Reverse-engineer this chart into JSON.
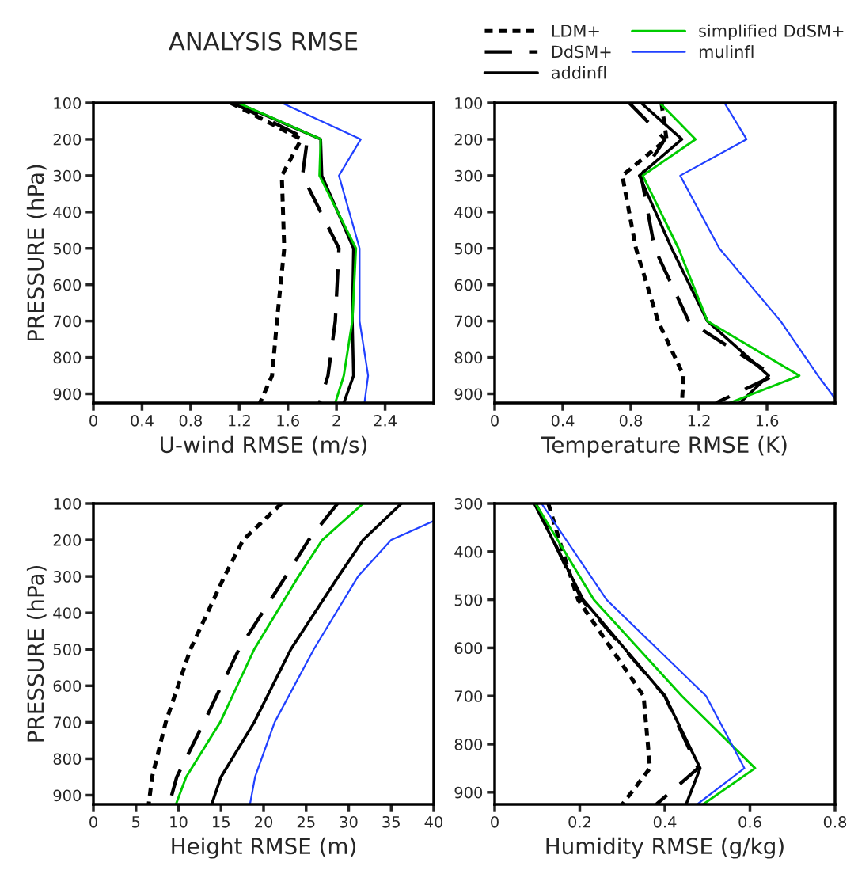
{
  "chart_data": [
    {
      "type": "line",
      "title": "ANALYSIS RMSE",
      "xlabel": "U-wind RMSE (m/s)",
      "ylabel": "PRESSURE (hPa)",
      "xlim": [
        0,
        2.8
      ],
      "xticks": [
        0,
        0.4,
        0.8,
        1.2,
        1.6,
        2,
        2.4
      ],
      "ylim": [
        925,
        100
      ],
      "yticks": [
        100,
        200,
        300,
        400,
        500,
        600,
        700,
        800,
        900
      ],
      "grid": false,
      "legend": false,
      "series": [
        {
          "color": "#000000",
          "line_style": "dotted",
          "x": [
            1.13,
            1.71,
            1.55,
            1.57,
            1.51,
            1.47,
            1.37
          ],
          "values": [
            100,
            200,
            300,
            500,
            700,
            850,
            925
          ]
        },
        {
          "color": "#000000",
          "line_style": "dashed",
          "x": [
            1.15,
            1.76,
            1.72,
            2.02,
            1.99,
            1.93,
            1.86
          ],
          "values": [
            100,
            200,
            300,
            500,
            700,
            850,
            925
          ]
        },
        {
          "color": "#000000",
          "line_style": "solid",
          "x": [
            1.18,
            1.87,
            1.88,
            2.14,
            2.13,
            2.14,
            2.06
          ],
          "values": [
            100,
            200,
            300,
            500,
            700,
            850,
            925
          ]
        },
        {
          "color": "#00cc00",
          "line_style": "solid",
          "x": [
            1.19,
            1.87,
            1.86,
            2.16,
            2.13,
            2.06,
            1.99
          ],
          "values": [
            100,
            200,
            300,
            500,
            700,
            850,
            925
          ]
        },
        {
          "color": "#2040ff",
          "line_style": "solid",
          "x": [
            1.55,
            2.2,
            2.02,
            2.19,
            2.19,
            2.26,
            2.23
          ],
          "values": [
            100,
            200,
            300,
            500,
            700,
            850,
            925
          ]
        }
      ]
    },
    {
      "type": "line",
      "xlabel": "Temperature RMSE (K)",
      "xlim": [
        0,
        2.0
      ],
      "xticks": [
        0,
        0.4,
        0.8,
        1.2,
        1.6
      ],
      "ylim": [
        925,
        100
      ],
      "yticks": [
        100,
        200,
        300,
        400,
        500,
        600,
        700,
        800,
        900
      ],
      "grid": false,
      "legend": "top",
      "series": [
        {
          "name": "LDM+",
          "color": "#000000",
          "line_style": "dotted",
          "x": [
            0.98,
            1.01,
            0.75,
            0.83,
            0.96,
            1.11,
            1.1
          ],
          "values": [
            100,
            200,
            300,
            500,
            700,
            850,
            925
          ]
        },
        {
          "name": "DdSM+",
          "color": "#000000",
          "line_style": "dashed",
          "x": [
            0.79,
            1.0,
            0.86,
            0.94,
            1.14,
            1.64,
            1.3
          ],
          "values": [
            100,
            200,
            300,
            500,
            700,
            850,
            925
          ]
        },
        {
          "name": "addinfl",
          "color": "#000000",
          "line_style": "solid",
          "x": [
            0.86,
            1.1,
            0.85,
            1.04,
            1.25,
            1.61,
            1.44
          ],
          "values": [
            100,
            200,
            300,
            500,
            700,
            850,
            925
          ]
        },
        {
          "name": "simplified DdSM+",
          "color": "#00cc00",
          "line_style": "solid",
          "x": [
            0.97,
            1.18,
            0.87,
            1.08,
            1.25,
            1.79,
            1.38
          ],
          "values": [
            100,
            200,
            300,
            500,
            700,
            850,
            925
          ]
        },
        {
          "name": "mulinfl",
          "color": "#2040ff",
          "line_style": "solid",
          "x": [
            1.35,
            1.48,
            1.09,
            1.32,
            1.68,
            1.9,
            2.0
          ],
          "values": [
            100,
            200,
            300,
            500,
            700,
            850,
            913
          ]
        }
      ]
    },
    {
      "type": "line",
      "xlabel": "Height RMSE (m)",
      "ylabel": "PRESSURE (hPa)",
      "xlim": [
        0,
        40
      ],
      "xticks": [
        0,
        5,
        10,
        15,
        20,
        25,
        30,
        35,
        40
      ],
      "ylim": [
        925,
        100
      ],
      "yticks": [
        100,
        200,
        300,
        400,
        500,
        600,
        700,
        800,
        900
      ],
      "grid": false,
      "legend": false,
      "series": [
        {
          "color": "#000000",
          "line_style": "dotted",
          "x": [
            22.1,
            17.6,
            15.4,
            11.4,
            8.5,
            6.9,
            6.5
          ],
          "values": [
            100,
            200,
            300,
            500,
            700,
            850,
            925
          ]
        },
        {
          "color": "#000000",
          "line_style": "dashed",
          "x": [
            28.7,
            25.3,
            22.6,
            17.1,
            13.0,
            9.8,
            8.9
          ],
          "values": [
            100,
            200,
            300,
            500,
            700,
            850,
            925
          ]
        },
        {
          "color": "#000000",
          "line_style": "solid",
          "x": [
            36.2,
            31.7,
            28.8,
            23.2,
            18.9,
            15.0,
            13.9
          ],
          "values": [
            100,
            200,
            300,
            500,
            700,
            850,
            925
          ]
        },
        {
          "color": "#00cc00",
          "line_style": "solid",
          "x": [
            31.7,
            26.9,
            24.1,
            18.9,
            14.9,
            10.9,
            9.7
          ],
          "values": [
            100,
            200,
            300,
            500,
            700,
            850,
            925
          ]
        },
        {
          "color": "#2040ff",
          "line_style": "solid",
          "x": [
            40,
            35.0,
            31.1,
            25.9,
            21.3,
            19.0,
            18.4
          ],
          "values": [
            148,
            200,
            300,
            500,
            700,
            850,
            925
          ]
        }
      ]
    },
    {
      "type": "line",
      "xlabel": "Humidity RMSE (g/kg)",
      "xlim": [
        0,
        0.8
      ],
      "xticks": [
        0,
        0.2,
        0.4,
        0.6,
        0.8
      ],
      "ylim": [
        925,
        300
      ],
      "yticks": [
        300,
        400,
        500,
        600,
        700,
        800,
        900
      ],
      "grid": false,
      "legend": false,
      "series": [
        {
          "color": "#000000",
          "line_style": "dotted",
          "x": [
            0.126,
            0.16,
            0.196,
            0.35,
            0.365,
            0.3
          ],
          "values": [
            300,
            400,
            500,
            700,
            850,
            925
          ]
        },
        {
          "color": "#000000",
          "line_style": "dashed",
          "x": [
            0.096,
            0.205,
            0.4,
            0.478,
            0.38
          ],
          "values": [
            300,
            500,
            700,
            850,
            925
          ]
        },
        {
          "color": "#000000",
          "line_style": "solid",
          "x": [
            0.093,
            0.208,
            0.4,
            0.483,
            0.45
          ],
          "values": [
            300,
            500,
            700,
            850,
            925
          ]
        },
        {
          "color": "#00cc00",
          "line_style": "solid",
          "x": [
            0.096,
            0.233,
            0.44,
            0.612,
            0.49
          ],
          "values": [
            300,
            500,
            700,
            850,
            925
          ]
        },
        {
          "color": "#2040ff",
          "line_style": "solid",
          "x": [
            0.11,
            0.263,
            0.497,
            0.587,
            0.476
          ],
          "values": [
            300,
            500,
            700,
            850,
            925
          ]
        }
      ]
    }
  ]
}
